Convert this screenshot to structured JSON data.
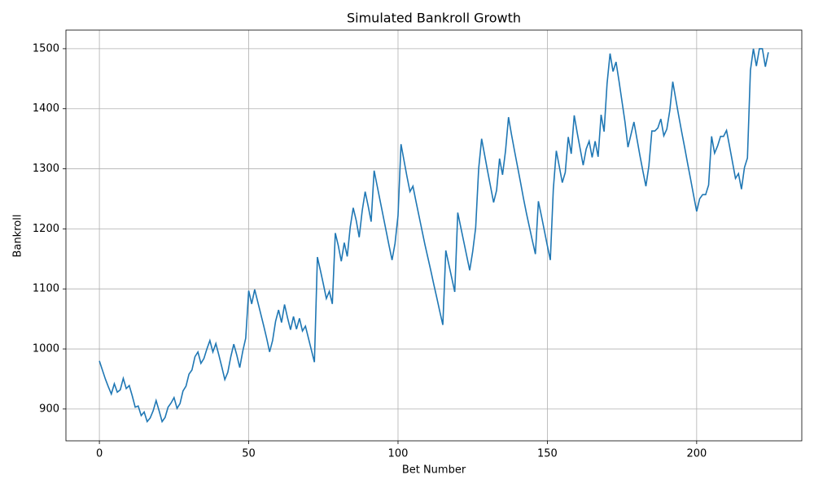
{
  "chart_data": {
    "type": "line",
    "title": "Simulated Bankroll Growth",
    "x_label": "Bet Number",
    "y_label": "Bankroll",
    "x": [
      0,
      1,
      2,
      3,
      4,
      5,
      6,
      7,
      8,
      9,
      10,
      11,
      12,
      13,
      14,
      15,
      16,
      17,
      18,
      19,
      20,
      21,
      22,
      23,
      24,
      25,
      26,
      27,
      28,
      29,
      30,
      31,
      32,
      33,
      34,
      35,
      36,
      37,
      38,
      39,
      40,
      41,
      42,
      43,
      44,
      45,
      46,
      47,
      48,
      49,
      50,
      51,
      52,
      53,
      54,
      55,
      56,
      57,
      58,
      59,
      60,
      61,
      62,
      63,
      64,
      65,
      66,
      67,
      68,
      69,
      70,
      71,
      72,
      73,
      74,
      75,
      76,
      77,
      78,
      79,
      80,
      81,
      82,
      83,
      84,
      85,
      86,
      87,
      88,
      89,
      90,
      91,
      92,
      93,
      94,
      95,
      96,
      97,
      98,
      99,
      100,
      101,
      102,
      103,
      104,
      105,
      106,
      107,
      108,
      109,
      110,
      111,
      112,
      113,
      114,
      115,
      116,
      117,
      118,
      119,
      120,
      121,
      122,
      123,
      124,
      125,
      126,
      127,
      128,
      129,
      130,
      131,
      132,
      133,
      134,
      135,
      136,
      137,
      138,
      139,
      140,
      141,
      142,
      143,
      144,
      145,
      146,
      147,
      148,
      149,
      150,
      151,
      152,
      153,
      154,
      155,
      156,
      157,
      158,
      159,
      160,
      161,
      162,
      163,
      164,
      165,
      166,
      167,
      168,
      169,
      170,
      171,
      172,
      173,
      174,
      175,
      176,
      177,
      178,
      179,
      180,
      181,
      182,
      183,
      184,
      185,
      186,
      187,
      188,
      189,
      190,
      191,
      192,
      193,
      194,
      195,
      196,
      197,
      198,
      199,
      200,
      201,
      202,
      203,
      204,
      205,
      206,
      207,
      208,
      209,
      210,
      211,
      212,
      213,
      214,
      215,
      216,
      217,
      218,
      219,
      220,
      221,
      222,
      223,
      224
    ],
    "values": [
      980,
      965,
      950,
      937,
      925,
      942,
      928,
      932,
      951,
      934,
      939,
      922,
      903,
      905,
      889,
      895,
      879,
      885,
      897,
      914,
      897,
      879,
      886,
      903,
      910,
      919,
      901,
      909,
      930,
      938,
      958,
      965,
      987,
      995,
      976,
      984,
      1000,
      1014,
      995,
      1009,
      990,
      970,
      949,
      961,
      987,
      1008,
      990,
      969,
      996,
      1018,
      1097,
      1075,
      1099,
      1079,
      1059,
      1039,
      1018,
      995,
      1014,
      1046,
      1065,
      1044,
      1074,
      1052,
      1032,
      1054,
      1033,
      1051,
      1030,
      1038,
      1018,
      998,
      978,
      1153,
      1131,
      1108,
      1084,
      1096,
      1075,
      1193,
      1172,
      1146,
      1177,
      1154,
      1203,
      1235,
      1214,
      1186,
      1230,
      1262,
      1238,
      1212,
      1297,
      1272,
      1247,
      1222,
      1197,
      1172,
      1148,
      1176,
      1222,
      1341,
      1314,
      1287,
      1262,
      1271,
      1246,
      1222,
      1198,
      1174,
      1152,
      1130,
      1107,
      1085,
      1062,
      1040,
      1164,
      1141,
      1118,
      1095,
      1227,
      1203,
      1179,
      1155,
      1131,
      1162,
      1202,
      1300,
      1350,
      1323,
      1296,
      1270,
      1244,
      1264,
      1317,
      1290,
      1330,
      1386,
      1357,
      1330,
      1304,
      1278,
      1251,
      1226,
      1203,
      1180,
      1158,
      1246,
      1222,
      1197,
      1172,
      1148,
      1266,
      1330,
      1304,
      1277,
      1294,
      1353,
      1325,
      1389,
      1360,
      1333,
      1306,
      1333,
      1346,
      1319,
      1346,
      1320,
      1390,
      1362,
      1442,
      1492,
      1462,
      1478,
      1446,
      1412,
      1378,
      1336,
      1357,
      1378,
      1350,
      1322,
      1296,
      1271,
      1305,
      1363,
      1363,
      1368,
      1383,
      1355,
      1366,
      1397,
      1445,
      1416,
      1388,
      1361,
      1335,
      1308,
      1282,
      1255,
      1229,
      1250,
      1257,
      1257,
      1273,
      1354,
      1326,
      1338,
      1354,
      1354,
      1364,
      1338,
      1311,
      1284,
      1292,
      1266,
      1302,
      1318,
      1464,
      1500,
      1471,
      1500,
      1500,
      1470,
      1494
    ],
    "color": "#1f77b4",
    "xlim": [
      -11.2,
      235.2
    ],
    "ylim": [
      847,
      1531
    ],
    "xticks": [
      0,
      50,
      100,
      150,
      200
    ],
    "yticks": [
      900,
      1000,
      1100,
      1200,
      1300,
      1400,
      1500
    ],
    "grid": true
  }
}
